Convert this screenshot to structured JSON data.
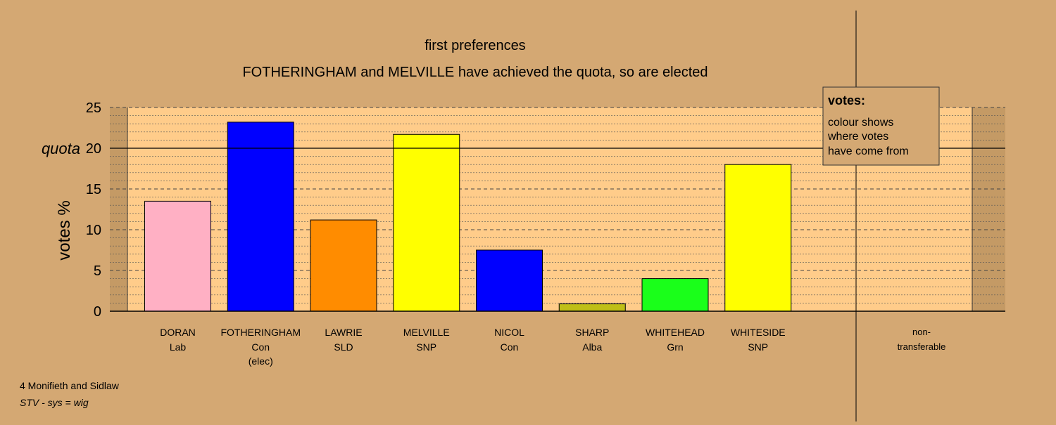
{
  "chart_data": {
    "type": "bar",
    "title": "first preferences",
    "subtitle": "FOTHERINGHAM and MELVILLE have achieved the quota, so are elected",
    "ylabel": "votes %",
    "ylim": [
      0,
      25
    ],
    "yticks": [
      "0",
      "5",
      "10",
      "15",
      "20",
      "25"
    ],
    "quota": {
      "label": "quota",
      "value": 20
    },
    "grid": true,
    "candidates": [
      {
        "name": "DORAN",
        "party": "Lab",
        "note": "",
        "value": 13.5,
        "color": "#ffb0c4"
      },
      {
        "name": "FOTHERINGHAM",
        "party": "Con",
        "note": "(elec)",
        "value": 23.2,
        "color": "#0000ff"
      },
      {
        "name": "LAWRIE",
        "party": "SLD",
        "note": "",
        "value": 11.2,
        "color": "#ff8c00"
      },
      {
        "name": "MELVILLE",
        "party": "SNP",
        "note": "",
        "value": 21.7,
        "color": "#ffff00"
      },
      {
        "name": "NICOL",
        "party": "Con",
        "note": "",
        "value": 7.5,
        "color": "#0000ff"
      },
      {
        "name": "SHARP",
        "party": "Alba",
        "note": "",
        "value": 0.9,
        "color": "#bfbf17"
      },
      {
        "name": "WHITEHEAD",
        "party": "Grn",
        "note": "",
        "value": 4.0,
        "color": "#1aff1a"
      },
      {
        "name": "WHITESIDE",
        "party": "SNP",
        "note": "",
        "value": 18.0,
        "color": "#ffff00"
      }
    ],
    "nontransferable": {
      "line1": "non-",
      "line2": "transferable",
      "value": 0
    },
    "legend": {
      "title": "votes:",
      "lines": [
        "colour shows",
        "where votes",
        "have come from"
      ],
      "position": "top-right"
    }
  },
  "footer": {
    "ward": "4 Monifieth and Sidlaw",
    "system": "STV - sys = wig"
  },
  "colors": {
    "background": "#d4a873",
    "plot_background": "#ffcc8a",
    "nontransferable_band": "#c49a65",
    "legend_background": "#d4a873"
  }
}
